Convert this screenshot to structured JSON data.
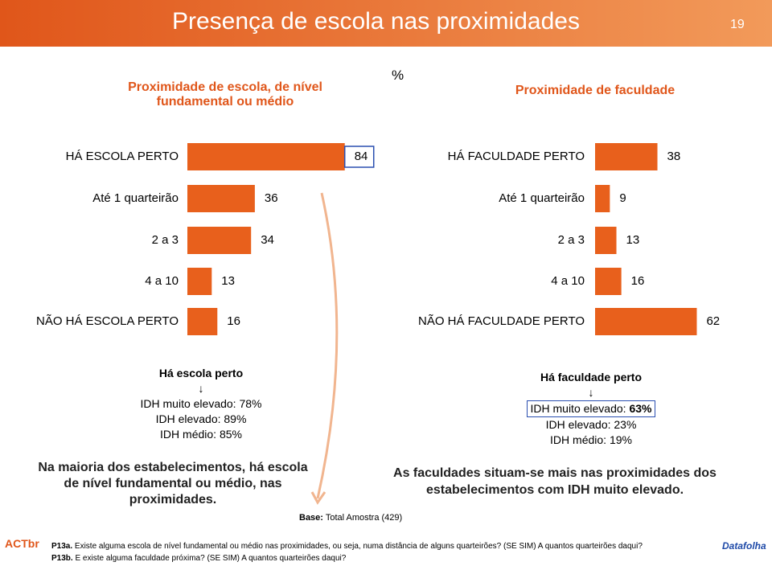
{
  "header": {
    "title": "Presença de escola nas proximidades",
    "page": "19"
  },
  "unit": "%",
  "chart_data": [
    {
      "type": "bar",
      "orientation": "horizontal",
      "title": "Proximidade de escola, de nível fundamental ou médio",
      "categories": [
        "HÁ ESCOLA PERTO",
        "Até 1 quarteirão",
        "2 a 3",
        "4 a 10",
        "NÃO HÁ ESCOLA PERTO"
      ],
      "values": [
        84,
        36,
        34,
        13,
        16
      ],
      "color": "#e8601c"
    },
    {
      "type": "bar",
      "orientation": "horizontal",
      "title": "Proximidade de faculdade",
      "categories": [
        "HÁ FACULDADE PERTO",
        "Até 1 quarteirão",
        "2 a 3",
        "4 a 10",
        "NÃO HÁ FACULDADE PERTO"
      ],
      "values": [
        38,
        9,
        13,
        16,
        62
      ],
      "color": "#e8601c"
    }
  ],
  "school_box": {
    "title": "Há escola perto",
    "lines": [
      "IDH muito elevado: 78%",
      "IDH elevado: 89%",
      "IDH médio: 85%"
    ]
  },
  "college_box": {
    "title": "Há faculdade perto",
    "first_label": "IDH muito elevado: ",
    "first_value": "63%",
    "lines": [
      "IDH elevado: 23%",
      "IDH médio: 19%"
    ]
  },
  "conclusions": {
    "left": "Na maioria dos estabelecimentos, há escola de nível fundamental ou médio, nas proximidades.",
    "right": "As faculdades situam-se mais nas proximidades dos estabelecimentos com IDH muito elevado."
  },
  "base": {
    "label": "Base:",
    "text": " Total Amostra (429)"
  },
  "footnotes": [
    {
      "code": "P13a.",
      "text": " Existe alguma escola de nível fundamental ou médio nas proximidades, ou seja, numa distância de alguns quarteirões? (SE SIM) A quantos quarteirões daqui?"
    },
    {
      "code": "P13b.",
      "text": " E existe alguma faculdade próxima? (SE SIM) A quantos quarteirões daqui?"
    }
  ],
  "logos": {
    "left": "ACTbr",
    "right": "Datafolha"
  }
}
